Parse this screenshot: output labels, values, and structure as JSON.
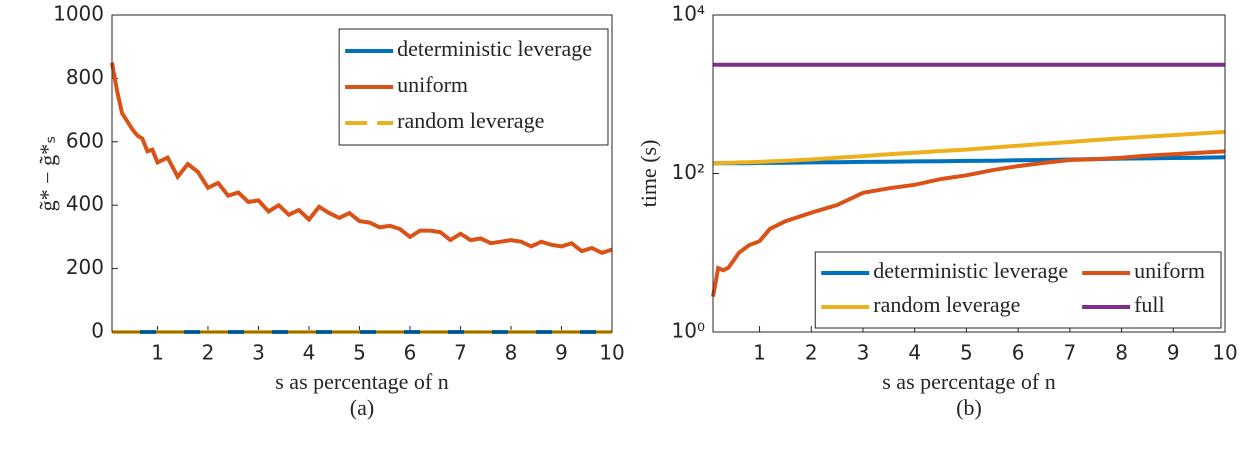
{
  "chart_data": [
    {
      "type": "line",
      "xlabel": "s as percentage of n",
      "ylabel": "g̃* − g̃*ₛ",
      "caption": "(a)",
      "xlim": [
        0.1,
        10
      ],
      "xticks": [
        1,
        2,
        3,
        4,
        5,
        6,
        7,
        8,
        9,
        10
      ],
      "ylim": [
        0,
        1000
      ],
      "yticks": [
        0,
        200,
        400,
        600,
        800,
        1000
      ],
      "legend": "upper right",
      "legend_columns": 1,
      "x": [
        0.1,
        0.2,
        0.3,
        0.4,
        0.5,
        0.6,
        0.7,
        0.8,
        0.9,
        1.0,
        1.2,
        1.4,
        1.6,
        1.8,
        2.0,
        2.2,
        2.4,
        2.6,
        2.8,
        3.0,
        3.2,
        3.4,
        3.6,
        3.8,
        4.0,
        4.2,
        4.4,
        4.6,
        4.8,
        5.0,
        5.2,
        5.4,
        5.6,
        5.8,
        6.0,
        6.2,
        6.4,
        6.6,
        6.8,
        7.0,
        7.2,
        7.4,
        7.6,
        7.8,
        8.0,
        8.2,
        8.4,
        8.6,
        8.8,
        9.0,
        9.2,
        9.4,
        9.6,
        9.8,
        10.0
      ],
      "series": [
        {
          "name": "deterministic leverage",
          "color": "#0072bd",
          "dash": false,
          "values": [
            0,
            0,
            0,
            0,
            0,
            0,
            0,
            0,
            0,
            0,
            0,
            0,
            0,
            0,
            0,
            0,
            0,
            0,
            0,
            0,
            0,
            0,
            0,
            0,
            0,
            0,
            0,
            0,
            0,
            0,
            0,
            0,
            0,
            0,
            0,
            0,
            0,
            0,
            0,
            0,
            0,
            0,
            0,
            0,
            0,
            0,
            0,
            0,
            0,
            0,
            0,
            0,
            0,
            0,
            0
          ]
        },
        {
          "name": "uniform",
          "color": "#d95319",
          "dash": false,
          "values": [
            850,
            760,
            690,
            665,
            640,
            620,
            610,
            570,
            575,
            535,
            550,
            490,
            530,
            505,
            455,
            470,
            430,
            440,
            410,
            415,
            380,
            400,
            370,
            385,
            355,
            395,
            375,
            360,
            375,
            350,
            345,
            330,
            335,
            325,
            300,
            320,
            320,
            315,
            290,
            310,
            290,
            295,
            280,
            285,
            290,
            285,
            270,
            285,
            275,
            270,
            280,
            255,
            265,
            250,
            260
          ]
        },
        {
          "name": "random leverage",
          "color": "#edb120",
          "dash": true,
          "values": [
            0,
            0,
            0,
            0,
            0,
            0,
            0,
            0,
            0,
            0,
            0,
            0,
            0,
            0,
            0,
            0,
            0,
            0,
            0,
            0,
            0,
            0,
            0,
            0,
            0,
            0,
            0,
            0,
            0,
            0,
            0,
            0,
            0,
            0,
            0,
            0,
            0,
            0,
            0,
            0,
            0,
            0,
            0,
            0,
            0,
            0,
            0,
            0,
            0,
            0,
            0,
            0,
            0,
            0,
            0
          ]
        }
      ]
    },
    {
      "type": "line",
      "xlabel": "s as percentage of n",
      "ylabel": "time (s)",
      "caption": "(b)",
      "xlim": [
        0.1,
        10
      ],
      "xticks": [
        1,
        2,
        3,
        4,
        5,
        6,
        7,
        8,
        9,
        10
      ],
      "ylim": [
        1,
        10000
      ],
      "log_y": true,
      "yticks": [
        {
          "value": 1,
          "label": "10⁰"
        },
        {
          "value": 100,
          "label": "10²"
        },
        {
          "value": 10000,
          "label": "10⁴"
        }
      ],
      "legend": "lower right",
      "legend_columns": 2,
      "x": [
        0.1,
        0.2,
        0.3,
        0.4,
        0.5,
        0.6,
        0.8,
        1.0,
        1.2,
        1.5,
        2,
        2.5,
        3,
        3.5,
        4,
        4.5,
        5,
        5.5,
        6,
        6.5,
        7,
        7.5,
        8,
        8.5,
        9,
        9.5,
        10
      ],
      "series": [
        {
          "name": "deterministic leverage",
          "color": "#0072bd",
          "dash": false,
          "values": [
            135,
            135,
            135,
            135,
            135,
            135,
            135,
            136,
            136,
            137,
            138,
            139,
            140,
            141,
            142,
            143,
            144,
            145,
            147,
            148,
            150,
            152,
            154,
            155,
            157,
            158,
            160
          ]
        },
        {
          "name": "uniform",
          "color": "#d95319",
          "dash": false,
          "values": [
            2.8,
            6.4,
            6,
            6.5,
            8,
            10,
            12.5,
            14,
            20,
            25,
            32,
            40,
            57,
            65,
            72,
            85,
            95,
            110,
            124,
            136,
            148,
            152,
            158,
            168,
            175,
            183,
            190
          ]
        },
        {
          "name": "random leverage",
          "color": "#edb120",
          "dash": false,
          "values": [
            135,
            135,
            136,
            137,
            137,
            138,
            139,
            140,
            142,
            145,
            150,
            158,
            166,
            175,
            183,
            192,
            200,
            212,
            224,
            238,
            250,
            265,
            278,
            292,
            305,
            320,
            335
          ]
        },
        {
          "name": "full",
          "color": "#7e2f8e",
          "dash": false,
          "values": [
            2350,
            2350,
            2350,
            2350,
            2350,
            2350,
            2350,
            2350,
            2350,
            2350,
            2350,
            2350,
            2350,
            2350,
            2350,
            2350,
            2350,
            2350,
            2350,
            2350,
            2350,
            2350,
            2350,
            2350,
            2350,
            2350,
            2350
          ]
        }
      ]
    }
  ]
}
